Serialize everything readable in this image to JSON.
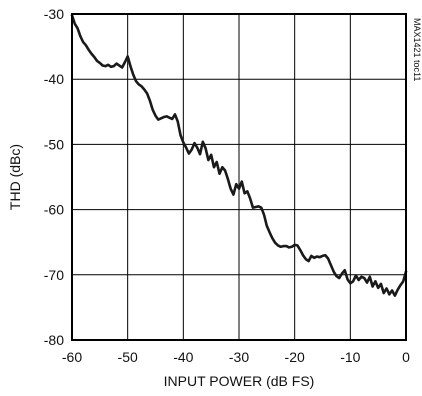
{
  "chart_data": {
    "type": "line",
    "xlabel": "INPUT POWER (dB FS)",
    "ylabel": "THD (dBc)",
    "xlim": [
      -60,
      0
    ],
    "ylim": [
      -80,
      -30
    ],
    "x_ticks": [
      -60,
      -50,
      -40,
      -30,
      -20,
      -10,
      0
    ],
    "y_ticks": [
      -30,
      -40,
      -50,
      -60,
      -70,
      -80
    ],
    "grid": true,
    "annotation": "MAX1421 toc11",
    "series": [
      {
        "x": [
          -60,
          -59.5,
          -59,
          -58.5,
          -58,
          -57.5,
          -57,
          -56.5,
          -56,
          -55.5,
          -55,
          -54.5,
          -54,
          -53.5,
          -53,
          -52.5,
          -52,
          -51.5,
          -51,
          -50.5,
          -50,
          -49.5,
          -49,
          -48.5,
          -48,
          -47.5,
          -47,
          -46.5,
          -46,
          -45.5,
          -45,
          -44.5,
          -44,
          -43.5,
          -43,
          -42.5,
          -42,
          -41.5,
          -41,
          -40.5,
          -40,
          -39.5,
          -39,
          -38.5,
          -38,
          -37.5,
          -37,
          -36.5,
          -36,
          -35.5,
          -35,
          -34.5,
          -34,
          -33.5,
          -33,
          -32.5,
          -32,
          -31.5,
          -31,
          -30.5,
          -30,
          -29.5,
          -29,
          -28.5,
          -28,
          -27.5,
          -27,
          -26.5,
          -26,
          -25.5,
          -25,
          -24.5,
          -24,
          -23.5,
          -23,
          -22.5,
          -22,
          -21.5,
          -21,
          -20.5,
          -20,
          -19.5,
          -19,
          -18.5,
          -18,
          -17.5,
          -17,
          -16.5,
          -16,
          -15.5,
          -15,
          -14.5,
          -14,
          -13.5,
          -13,
          -12.5,
          -12,
          -11.5,
          -11,
          -10.5,
          -10,
          -9.5,
          -9,
          -8.5,
          -8,
          -7.5,
          -7,
          -6.5,
          -6,
          -5.5,
          -5,
          -4.5,
          -4,
          -3.5,
          -3,
          -2.5,
          -2,
          -1.5,
          -1,
          -0.5,
          0
        ],
        "values": [
          -30.2,
          -31.5,
          -32.2,
          -33.4,
          -34.3,
          -34.8,
          -35.5,
          -36.1,
          -36.6,
          -37.2,
          -37.5,
          -37.9,
          -38.0,
          -37.8,
          -38.1,
          -38.0,
          -37.6,
          -37.9,
          -38.2,
          -37.4,
          -36.5,
          -38.0,
          -39.3,
          -40.3,
          -40.8,
          -41.1,
          -41.6,
          -42.2,
          -43.3,
          -44.7,
          -45.6,
          -46.2,
          -46.0,
          -45.8,
          -45.7,
          -45.9,
          -46.1,
          -45.4,
          -46.5,
          -48.6,
          -49.7,
          -50.5,
          -51.4,
          -50.8,
          -49.8,
          -50.5,
          -51.5,
          -49.6,
          -50.6,
          -52.4,
          -51.6,
          -53.5,
          -52.7,
          -54.5,
          -53.5,
          -54.0,
          -55.3,
          -56.8,
          -57.7,
          -56.1,
          -56.8,
          -55.7,
          -57.5,
          -57.2,
          -58.3,
          -59.7,
          -59.6,
          -59.5,
          -59.7,
          -60.8,
          -62.5,
          -63.5,
          -64.4,
          -65.1,
          -65.5,
          -65.7,
          -65.6,
          -65.6,
          -65.8,
          -65.7,
          -65.4,
          -65.5,
          -66.2,
          -67.0,
          -67.6,
          -67.9,
          -67.1,
          -67.4,
          -67.2,
          -67.3,
          -67.1,
          -67.0,
          -67.5,
          -68.5,
          -69.5,
          -70.2,
          -70.5,
          -69.8,
          -69.3,
          -70.7,
          -71.3,
          -71.0,
          -70.1,
          -70.8,
          -70.3,
          -70.5,
          -71.2,
          -70.3,
          -71.8,
          -71.0,
          -72.0,
          -71.4,
          -72.8,
          -72.1,
          -73.0,
          -72.4,
          -73.2,
          -72.3,
          -71.6,
          -71.0,
          -69.5
        ]
      }
    ]
  }
}
